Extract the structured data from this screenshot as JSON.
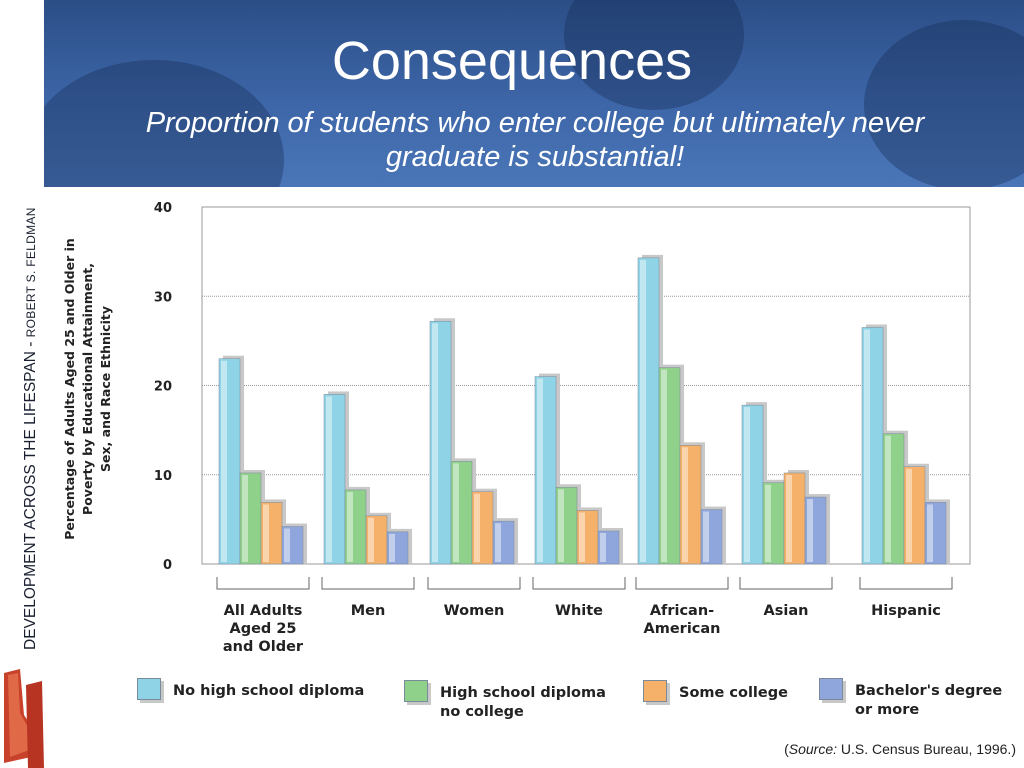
{
  "slide": {
    "title": "Consequences",
    "subtitle": "Proportion of students who enter college but ultimately never graduate is substantial!"
  },
  "sidebar": {
    "book_title": "DEVELOPMENT ACROSS THE LIFESPAN - ",
    "author": "ROBERT S. FELDMAN"
  },
  "source": {
    "prefix": "(",
    "label": "Source:",
    "text": " U.S. Census Bureau, 1996.)"
  },
  "colors": {
    "no_hs": "#8fd3e6",
    "hs": "#8fd08a",
    "some_college": "#f5b169",
    "bachelor": "#8fa6dc"
  },
  "chart_data": {
    "type": "bar",
    "ylabel": "Percentage of Adults Aged 25 and Older in Poverty by Educational Attainment, Sex, and Race Ethnicity",
    "ylim": [
      0,
      40
    ],
    "yticks": [
      "0",
      "10",
      "20",
      "30",
      "40"
    ],
    "grid": true,
    "legend_position": "bottom",
    "categories": [
      "All Adults Aged 25 and Older",
      "Men",
      "Women",
      "White",
      "African-American",
      "Asian",
      "Hispanic"
    ],
    "category_labels": [
      [
        "All Adults",
        "Aged 25",
        "and Older"
      ],
      [
        "Men"
      ],
      [
        "Women"
      ],
      [
        "White"
      ],
      [
        "African-",
        "American"
      ],
      [
        "Asian"
      ],
      [
        "Hispanic"
      ]
    ],
    "series": [
      {
        "name": "No high school diploma",
        "label_lines": [
          "No high school diploma"
        ],
        "color": "#8fd3e6",
        "values": [
          23,
          19,
          27.2,
          21,
          34.3,
          17.8,
          26.5
        ]
      },
      {
        "name": "High school diploma no college",
        "label_lines": [
          "High school diploma",
          "no college"
        ],
        "color": "#8fd08a",
        "values": [
          10.2,
          8.3,
          11.5,
          8.6,
          22,
          9.1,
          14.6
        ]
      },
      {
        "name": "Some college",
        "label_lines": [
          "Some college"
        ],
        "color": "#f5b169",
        "values": [
          6.9,
          5.4,
          8.1,
          6,
          13.3,
          10.2,
          10.9
        ]
      },
      {
        "name": "Bachelor's degree or more",
        "label_lines": [
          "Bachelor's degree",
          "or more"
        ],
        "color": "#8fa6dc",
        "values": [
          4.2,
          3.6,
          4.8,
          3.7,
          6.1,
          7.5,
          6.9
        ]
      }
    ]
  }
}
